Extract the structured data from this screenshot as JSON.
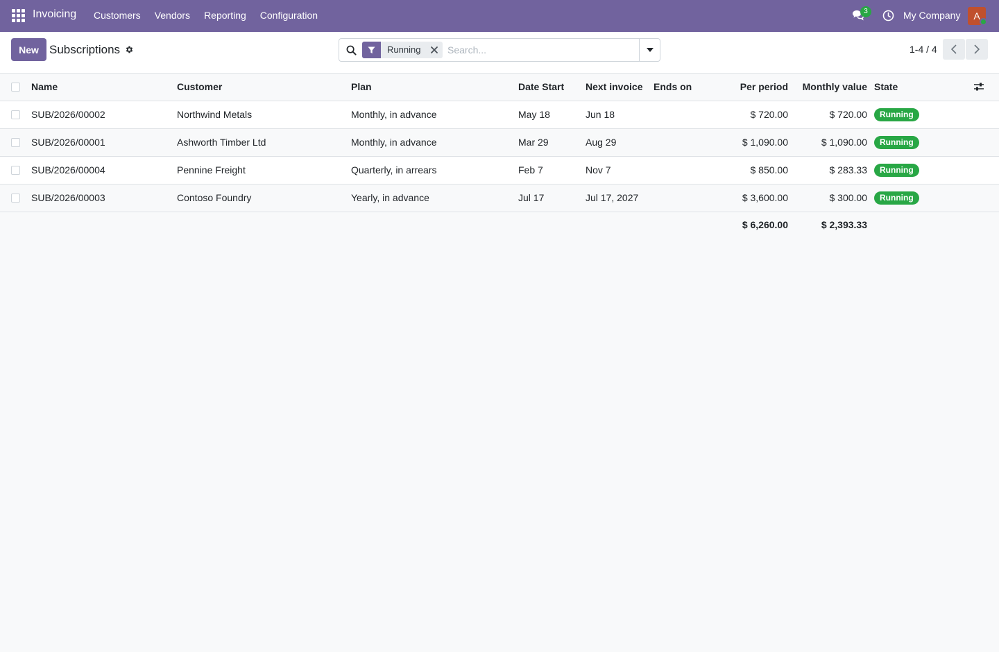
{
  "navbar": {
    "app_name": "Invoicing",
    "menu": [
      "Customers",
      "Vendors",
      "Reporting",
      "Configuration"
    ],
    "chat_count": "3",
    "company": "My Company",
    "avatar_letter": "A",
    "icons": [
      "apps-grid-icon",
      "chat-icon",
      "clock-icon"
    ]
  },
  "control_panel": {
    "new_label": "New",
    "title": "Subscriptions",
    "search": {
      "facet_label": "Running",
      "placeholder": "Search..."
    },
    "pager": "1-4 / 4"
  },
  "table": {
    "columns": [
      "Name",
      "Customer",
      "Plan",
      "Date Start",
      "Next invoice",
      "Ends on",
      "Per period",
      "Monthly value",
      "State"
    ],
    "rows": [
      {
        "name": "SUB/2026/00002",
        "customer": "Northwind Metals",
        "plan": "Monthly, in advance",
        "date_start": "May 18",
        "next_invoice": "Jun 18",
        "ends_on": "",
        "per_period": "$ 720.00",
        "monthly_value": "$ 720.00",
        "state": "Running"
      },
      {
        "name": "SUB/2026/00001",
        "customer": "Ashworth Timber Ltd",
        "plan": "Monthly, in advance",
        "date_start": "Mar 29",
        "next_invoice": "Aug 29",
        "ends_on": "",
        "per_period": "$ 1,090.00",
        "monthly_value": "$ 1,090.00",
        "state": "Running"
      },
      {
        "name": "SUB/2026/00004",
        "customer": "Pennine Freight",
        "plan": "Quarterly, in arrears",
        "date_start": "Feb 7",
        "next_invoice": "Nov 7",
        "ends_on": "",
        "per_period": "$ 850.00",
        "monthly_value": "$ 283.33",
        "state": "Running"
      },
      {
        "name": "SUB/2026/00003",
        "customer": "Contoso Foundry",
        "plan": "Yearly, in advance",
        "date_start": "Jul 17",
        "next_invoice": "Jul 17, 2027",
        "ends_on": "",
        "per_period": "$ 3,600.00",
        "monthly_value": "$ 300.00",
        "state": "Running"
      }
    ],
    "totals": {
      "per_period": "$ 6,260.00",
      "monthly_value": "$ 2,393.33"
    }
  },
  "colors": {
    "brand": "#71639e",
    "status_running": "#28a745"
  }
}
